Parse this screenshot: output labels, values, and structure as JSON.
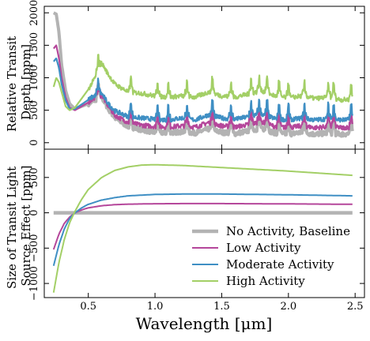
{
  "chart_data": [
    {
      "type": "line",
      "panel": "top",
      "ylabel": "Relative Transit\nDepth [ppm]",
      "xlim": [
        0.17,
        2.57
      ],
      "ylim": [
        -100,
        2100
      ],
      "xticks": [
        0.5,
        1.0,
        1.5,
        2.0,
        2.5
      ],
      "yticks": [
        0,
        500,
        1000,
        1500,
        2000
      ],
      "ytick_labels": [
        "0",
        "500",
        "1000",
        "1500",
        "2000"
      ],
      "x_tick_labels_visible": false,
      "noisy_features": true,
      "series": [
        {
          "name": "No Activity, Baseline",
          "color": "#b3b3b3",
          "points": [
            [
              0.24,
              2000
            ],
            [
              0.26,
              1980
            ],
            [
              0.28,
              1700
            ],
            [
              0.3,
              1200
            ],
            [
              0.33,
              800
            ],
            [
              0.36,
              600
            ],
            [
              0.4,
              520
            ],
            [
              0.45,
              560
            ],
            [
              0.5,
              600
            ],
            [
              0.55,
              660
            ],
            [
              0.6,
              700
            ],
            [
              0.65,
              520
            ],
            [
              0.7,
              380
            ],
            [
              0.8,
              250
            ],
            [
              0.9,
              200
            ],
            [
              1.0,
              160
            ],
            [
              1.1,
              150
            ],
            [
              1.2,
              170
            ],
            [
              1.3,
              150
            ],
            [
              1.4,
              210
            ],
            [
              1.5,
              160
            ],
            [
              1.6,
              140
            ],
            [
              1.7,
              180
            ],
            [
              1.8,
              220
            ],
            [
              1.9,
              150
            ],
            [
              2.0,
              130
            ],
            [
              2.1,
              160
            ],
            [
              2.2,
              130
            ],
            [
              2.3,
              150
            ],
            [
              2.4,
              130
            ],
            [
              2.48,
              140
            ]
          ]
        },
        {
          "name": "Low Activity",
          "color": "#b5479b",
          "points": [
            [
              0.24,
              1450
            ],
            [
              0.26,
              1500
            ],
            [
              0.28,
              1300
            ],
            [
              0.3,
              1000
            ],
            [
              0.33,
              700
            ],
            [
              0.36,
              540
            ],
            [
              0.4,
              500
            ],
            [
              0.45,
              560
            ],
            [
              0.5,
              620
            ],
            [
              0.55,
              700
            ],
            [
              0.6,
              730
            ],
            [
              0.65,
              560
            ],
            [
              0.7,
              420
            ],
            [
              0.8,
              310
            ],
            [
              0.9,
              270
            ],
            [
              1.0,
              250
            ],
            [
              1.1,
              240
            ],
            [
              1.2,
              260
            ],
            [
              1.3,
              240
            ],
            [
              1.4,
              310
            ],
            [
              1.5,
              260
            ],
            [
              1.6,
              240
            ],
            [
              1.7,
              280
            ],
            [
              1.8,
              320
            ],
            [
              1.9,
              250
            ],
            [
              2.0,
              230
            ],
            [
              2.1,
              260
            ],
            [
              2.2,
              230
            ],
            [
              2.3,
              250
            ],
            [
              2.4,
              230
            ],
            [
              2.48,
              240
            ]
          ]
        },
        {
          "name": "Moderate Activity",
          "color": "#3f8fc4",
          "points": [
            [
              0.24,
              1250
            ],
            [
              0.26,
              1300
            ],
            [
              0.28,
              1150
            ],
            [
              0.3,
              900
            ],
            [
              0.33,
              650
            ],
            [
              0.36,
              520
            ],
            [
              0.4,
              520
            ],
            [
              0.45,
              590
            ],
            [
              0.5,
              660
            ],
            [
              0.55,
              730
            ],
            [
              0.6,
              760
            ],
            [
              0.65,
              600
            ],
            [
              0.7,
              490
            ],
            [
              0.8,
              400
            ],
            [
              0.9,
              380
            ],
            [
              1.0,
              360
            ],
            [
              1.1,
              350
            ],
            [
              1.2,
              380
            ],
            [
              1.3,
              350
            ],
            [
              1.4,
              430
            ],
            [
              1.5,
              380
            ],
            [
              1.6,
              360
            ],
            [
              1.7,
              400
            ],
            [
              1.8,
              440
            ],
            [
              1.9,
              370
            ],
            [
              2.0,
              350
            ],
            [
              2.1,
              380
            ],
            [
              2.2,
              350
            ],
            [
              2.3,
              370
            ],
            [
              2.4,
              350
            ],
            [
              2.48,
              360
            ]
          ]
        },
        {
          "name": "High Activity",
          "color": "#a3cf66",
          "points": [
            [
              0.24,
              860
            ],
            [
              0.26,
              1000
            ],
            [
              0.28,
              930
            ],
            [
              0.3,
              780
            ],
            [
              0.33,
              560
            ],
            [
              0.36,
              500
            ],
            [
              0.4,
              540
            ],
            [
              0.45,
              680
            ],
            [
              0.5,
              820
            ],
            [
              0.55,
              1000
            ],
            [
              0.6,
              1230
            ],
            [
              0.65,
              1050
            ],
            [
              0.7,
              900
            ],
            [
              0.8,
              780
            ],
            [
              0.9,
              760
            ],
            [
              1.0,
              720
            ],
            [
              1.1,
              700
            ],
            [
              1.2,
              720
            ],
            [
              1.3,
              700
            ],
            [
              1.4,
              780
            ],
            [
              1.5,
              720
            ],
            [
              1.6,
              700
            ],
            [
              1.7,
              750
            ],
            [
              1.8,
              800
            ],
            [
              1.9,
              720
            ],
            [
              2.0,
              690
            ],
            [
              2.1,
              720
            ],
            [
              2.2,
              680
            ],
            [
              2.3,
              700
            ],
            [
              2.4,
              660
            ],
            [
              2.48,
              670
            ]
          ]
        }
      ]
    },
    {
      "type": "line",
      "panel": "bottom",
      "xlabel": "Wavelength [μm]",
      "ylabel": "Size of Transit Light\nSource Effect [ppm]",
      "xlim": [
        0.17,
        2.57
      ],
      "ylim": [
        -1200,
        900
      ],
      "xticks": [
        0.5,
        1.0,
        1.5,
        2.0,
        2.5
      ],
      "xtick_labels": [
        "0.5",
        "1.0",
        "1.5",
        "2.0",
        "2.5"
      ],
      "yticks": [
        -1000,
        -500,
        0,
        500
      ],
      "ytick_labels": [
        "−1000",
        "−500",
        "0",
        "500"
      ],
      "legend_position": "lower-right",
      "series": [
        {
          "name": "No Activity, Baseline",
          "color": "#b3b3b3",
          "points": [
            [
              0.24,
              0
            ],
            [
              2.48,
              0
            ]
          ]
        },
        {
          "name": "Low Activity",
          "color": "#b5479b",
          "points": [
            [
              0.24,
              -520
            ],
            [
              0.28,
              -300
            ],
            [
              0.32,
              -150
            ],
            [
              0.36,
              -60
            ],
            [
              0.4,
              0
            ],
            [
              0.45,
              40
            ],
            [
              0.5,
              70
            ],
            [
              0.6,
              100
            ],
            [
              0.7,
              115
            ],
            [
              0.8,
              122
            ],
            [
              1.0,
              128
            ],
            [
              1.2,
              130
            ],
            [
              1.5,
              130
            ],
            [
              2.0,
              126
            ],
            [
              2.48,
              120
            ]
          ]
        },
        {
          "name": "Moderate Activity",
          "color": "#3f8fc4",
          "points": [
            [
              0.24,
              -750
            ],
            [
              0.28,
              -450
            ],
            [
              0.32,
              -230
            ],
            [
              0.36,
              -80
            ],
            [
              0.4,
              0
            ],
            [
              0.45,
              70
            ],
            [
              0.5,
              120
            ],
            [
              0.6,
              180
            ],
            [
              0.7,
              215
            ],
            [
              0.8,
              240
            ],
            [
              1.0,
              260
            ],
            [
              1.2,
              265
            ],
            [
              1.5,
              265
            ],
            [
              2.0,
              255
            ],
            [
              2.48,
              240
            ]
          ]
        },
        {
          "name": "High Activity",
          "color": "#a3cf66",
          "points": [
            [
              0.24,
              -1130
            ],
            [
              0.28,
              -700
            ],
            [
              0.32,
              -380
            ],
            [
              0.36,
              -140
            ],
            [
              0.4,
              20
            ],
            [
              0.45,
              190
            ],
            [
              0.5,
              330
            ],
            [
              0.6,
              500
            ],
            [
              0.7,
              600
            ],
            [
              0.8,
              650
            ],
            [
              0.9,
              675
            ],
            [
              1.0,
              680
            ],
            [
              1.2,
              670
            ],
            [
              1.5,
              640
            ],
            [
              2.0,
              590
            ],
            [
              2.48,
              530
            ]
          ]
        }
      ]
    }
  ]
}
